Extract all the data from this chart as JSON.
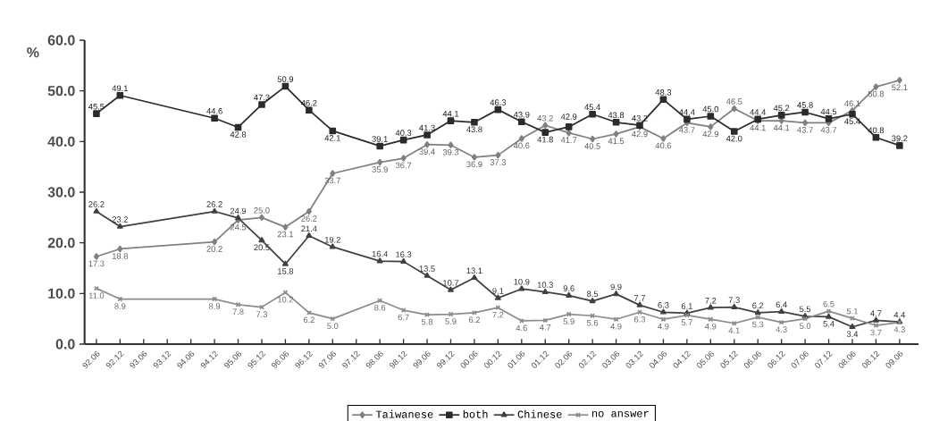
{
  "chart_data": {
    "type": "line",
    "ylabel": "%",
    "categories": [
      "92.06",
      "92.12",
      "93.06",
      "93.12",
      "94.06",
      "94.12",
      "95.06",
      "95.12",
      "96.06",
      "96.12",
      "97.06",
      "97.12",
      "98.06",
      "98.12",
      "99.06",
      "99.12",
      "00.06",
      "00.12",
      "01.06",
      "01.12",
      "02.06",
      "02.12",
      "03.06",
      "03.12",
      "04.06",
      "04.12",
      "05.06",
      "05.12",
      "06.06",
      "06.12",
      "07.06",
      "07.12",
      "08.06",
      "08.12",
      "09.06"
    ],
    "series": [
      {
        "name": "Taiwanese",
        "color": "#808080",
        "marker": "diamond",
        "values": [
          17.3,
          18.8,
          null,
          null,
          null,
          20.2,
          24.5,
          25.0,
          23.1,
          26.2,
          33.7,
          null,
          35.9,
          36.7,
          39.4,
          39.3,
          36.9,
          37.3,
          40.6,
          43.2,
          41.7,
          40.5,
          41.5,
          42.9,
          40.6,
          43.7,
          42.9,
          46.5,
          44.1,
          44.1,
          43.7,
          43.7,
          46.1,
          50.8,
          52.1
        ],
        "value_labels": [
          "17.3",
          "18.8",
          null,
          null,
          null,
          "20.2",
          "24.5",
          "25.0",
          "23.1",
          "26.2",
          "33.7",
          null,
          "35.9",
          "36.7",
          "39.4",
          "39.3",
          "36.9",
          "37.3",
          "40.6",
          "43.2",
          "41.7",
          "40.5",
          "41.5",
          "42.9",
          "40.6",
          "43.7",
          "42.9",
          "46.5",
          "44.1",
          "44.1",
          "43.7",
          "43.7",
          "46.1",
          "50.8",
          "52.1"
        ]
      },
      {
        "name": "both",
        "color": "#2b2b2b",
        "marker": "square",
        "values": [
          45.5,
          49.1,
          null,
          null,
          null,
          44.6,
          42.8,
          47.3,
          50.9,
          46.2,
          42.1,
          null,
          39.1,
          40.3,
          41.3,
          44.1,
          43.8,
          46.3,
          43.9,
          41.8,
          42.9,
          45.4,
          43.8,
          43.2,
          48.3,
          44.4,
          45.0,
          42.0,
          44.4,
          45.2,
          45.8,
          44.5,
          45.4,
          40.8,
          39.2
        ],
        "value_labels": [
          "45.5",
          "49.1",
          null,
          null,
          null,
          "44.6",
          "42.8",
          "47.3",
          "50.9",
          "46.2",
          "42.1",
          null,
          "39.1",
          "40.3",
          "41.3",
          "44.1",
          "43.8",
          "46.3",
          "43.9",
          "41.8",
          "42.9",
          "45.4",
          "43.8",
          "43.2",
          "48.3",
          "44.4",
          "45.0",
          "42.0",
          "44.4",
          "45.2",
          "45.8",
          "44.5",
          "45.4",
          "40.8",
          "39.2"
        ]
      },
      {
        "name": "Chinese",
        "color": "#404040",
        "marker": "triangle",
        "values": [
          26.2,
          23.2,
          null,
          null,
          null,
          26.2,
          24.9,
          20.5,
          15.8,
          21.4,
          19.2,
          null,
          16.4,
          16.3,
          13.5,
          10.7,
          13.1,
          9.1,
          10.9,
          10.3,
          9.6,
          8.5,
          9.9,
          7.7,
          6.3,
          6.1,
          7.2,
          7.3,
          6.2,
          6.4,
          5.5,
          5.4,
          3.4,
          4.7,
          4.4
        ],
        "value_labels": [
          "26.2",
          "23.2",
          null,
          null,
          null,
          "26.2",
          "24.9",
          "20.5",
          "15.8",
          "21.4",
          "19.2",
          null,
          "16.4",
          "16.3",
          "13.5",
          "10.7",
          "13.1",
          "9.1",
          "10.9",
          "10.3",
          "9.6",
          "8.5",
          "9.9",
          "7.7",
          "6.3",
          "6.1",
          "7.2",
          "7.3",
          "6.2",
          "6.4",
          "5.5",
          "5.4",
          "3.4",
          "4.7",
          "4.4"
        ]
      },
      {
        "name": "no answer",
        "color": "#8c8c8c",
        "marker": "cross",
        "values": [
          11.0,
          8.9,
          null,
          null,
          null,
          8.9,
          7.8,
          7.3,
          10.2,
          6.2,
          5.0,
          null,
          8.6,
          6.7,
          5.8,
          5.9,
          6.2,
          7.2,
          4.6,
          4.7,
          5.9,
          5.6,
          4.9,
          6.3,
          4.9,
          5.7,
          4.9,
          4.1,
          5.3,
          4.3,
          5.0,
          6.5,
          5.1,
          3.7,
          4.3
        ],
        "value_labels": [
          "11.0",
          "8.9",
          null,
          null,
          null,
          "8.9",
          "7.8",
          "7.3",
          "10.2",
          "6.2",
          "5.0",
          null,
          "8.6",
          "6.7",
          "5.8",
          "5.9",
          "6.2",
          "7.2",
          "4.6",
          "4.7",
          "5.9",
          "5.6",
          "4.9",
          "6.3",
          "4.9",
          "5.7",
          "4.9",
          "4.1",
          "5.3",
          "4.3",
          "5.0",
          "6.5",
          "5.1",
          "3.7",
          "4.3"
        ]
      }
    ],
    "ylim": [
      0,
      60
    ],
    "yticks": [
      {
        "value": 0,
        "label": "0.0"
      },
      {
        "value": 10,
        "label": "10.0"
      },
      {
        "value": 20,
        "label": "20.0"
      },
      {
        "value": 30,
        "label": "30.0"
      },
      {
        "value": 40,
        "label": "40.0"
      },
      {
        "value": 50,
        "label": "50.0"
      },
      {
        "value": 60,
        "label": "60.0"
      }
    ],
    "legend": "bottom",
    "grid": false,
    "line_style": "solid"
  }
}
